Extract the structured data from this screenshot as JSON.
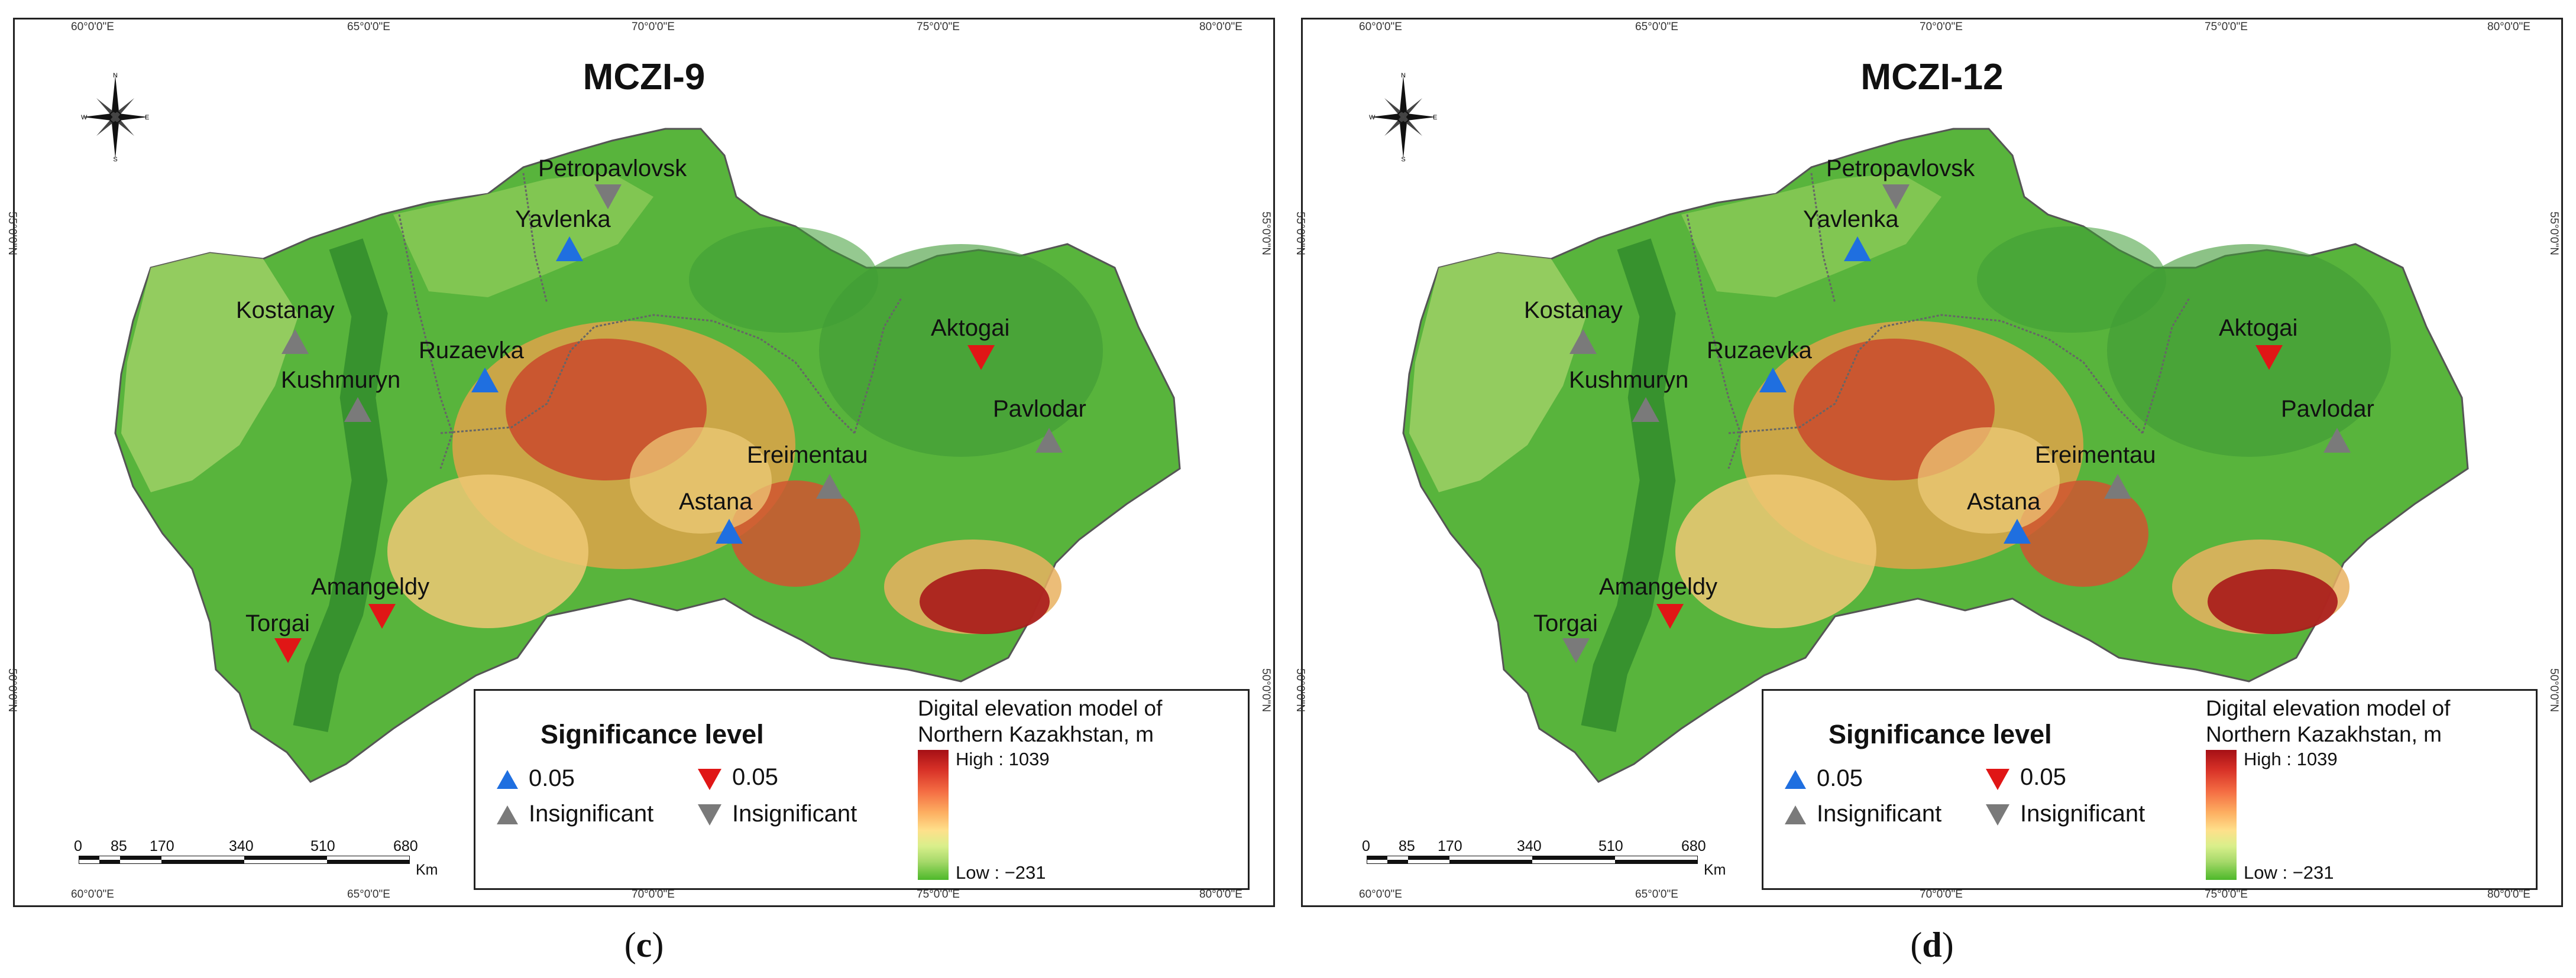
{
  "colors": {
    "significant_up": "#1f6fe0",
    "significant_down": "#e01616",
    "insignificant": "#7a7a7a",
    "lowland_green": "#56b33a",
    "highland_red": "#b01b16"
  },
  "icons": {
    "increase_significant": "triangle-up-blue",
    "decrease_significant": "triangle-down-red",
    "increase_insignificant": "triangle-up-gray",
    "decrease_insignificant": "triangle-down-gray",
    "compass": "north-arrow-compass-rose"
  },
  "compass_labels": {
    "n": "N",
    "s": "S",
    "e": "E",
    "w": "W"
  },
  "axis_ticks": {
    "longitude": [
      "60°0'0\"E",
      "65°0'0\"E",
      "70°0'0\"E",
      "75°0'0\"E",
      "80°0'0\"E"
    ],
    "latitude": [
      "55°0'0\"N",
      "50°0'0\"N"
    ]
  },
  "legend": {
    "title": "Significance level",
    "up_value": "0.05",
    "down_value": "0.05",
    "insig_up_label": "Insignificant",
    "insig_down_label": "Insignificant",
    "dem_title_line1": "Digital elevation model of",
    "dem_title_line2": "Northern Kazakhstan, m",
    "dem_high": "High : 1039",
    "dem_low": "Low : −231"
  },
  "scale": {
    "ticks": [
      "0",
      "85",
      "170",
      "340",
      "510",
      "680"
    ],
    "unit": "Km"
  },
  "panels": [
    {
      "title": "MCZI-9",
      "caption_open": "(",
      "caption_letter": "c",
      "caption_close": ")",
      "stations": [
        {
          "name": "Petropavlovsk",
          "trend": "down",
          "significance": "Insignificant"
        },
        {
          "name": "Yavlenka",
          "trend": "up",
          "significance": "0.05"
        },
        {
          "name": "Kostanay",
          "trend": "up",
          "significance": "Insignificant"
        },
        {
          "name": "Ruzaevka",
          "trend": "up",
          "significance": "0.05"
        },
        {
          "name": "Kushmuryn",
          "trend": "up",
          "significance": "Insignificant"
        },
        {
          "name": "Aktogai",
          "trend": "down",
          "significance": "0.05"
        },
        {
          "name": "Pavlodar",
          "trend": "up",
          "significance": "Insignificant"
        },
        {
          "name": "Ereimentau",
          "trend": "up",
          "significance": "Insignificant"
        },
        {
          "name": "Astana",
          "trend": "up",
          "significance": "0.05"
        },
        {
          "name": "Amangeldy",
          "trend": "down",
          "significance": "0.05"
        },
        {
          "name": "Torgai",
          "trend": "down",
          "significance": "0.05"
        }
      ]
    },
    {
      "title": "MCZI-12",
      "caption_open": "(",
      "caption_letter": "d",
      "caption_close": ")",
      "stations": [
        {
          "name": "Petropavlovsk",
          "trend": "down",
          "significance": "Insignificant"
        },
        {
          "name": "Yavlenka",
          "trend": "up",
          "significance": "0.05"
        },
        {
          "name": "Kostanay",
          "trend": "up",
          "significance": "Insignificant"
        },
        {
          "name": "Ruzaevka",
          "trend": "up",
          "significance": "0.05"
        },
        {
          "name": "Kushmuryn",
          "trend": "up",
          "significance": "Insignificant"
        },
        {
          "name": "Aktogai",
          "trend": "down",
          "significance": "0.05"
        },
        {
          "name": "Pavlodar",
          "trend": "up",
          "significance": "Insignificant"
        },
        {
          "name": "Ereimentau",
          "trend": "up",
          "significance": "Insignificant"
        },
        {
          "name": "Astana",
          "trend": "up",
          "significance": "0.05"
        },
        {
          "name": "Amangeldy",
          "trend": "down",
          "significance": "0.05"
        },
        {
          "name": "Torgai",
          "trend": "down",
          "significance": "Insignificant"
        }
      ]
    }
  ]
}
